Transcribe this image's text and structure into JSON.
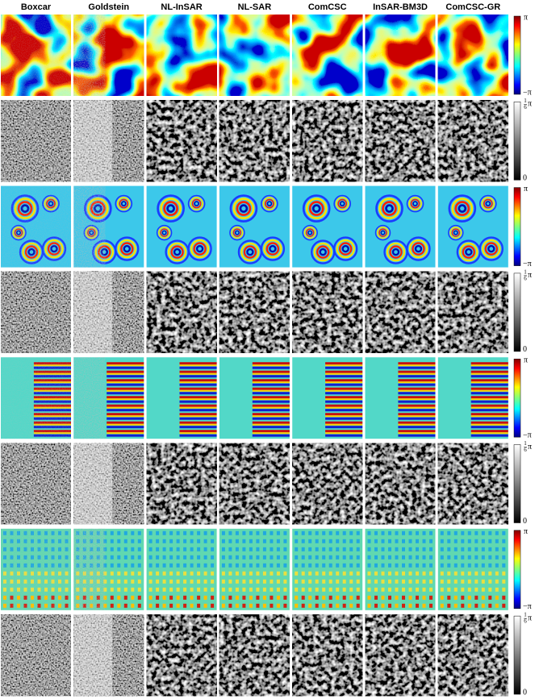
{
  "columns": [
    "Boxcar",
    "Goldstein",
    "NL-InSAR",
    "NL-SAR",
    "ComCSC",
    "InSAR-BM3D",
    "ComCSC-GR"
  ],
  "rows": [
    {
      "colorbar": {
        "top": "π",
        "bottom": "−π"
      }
    },
    {
      "colorbar": {
        "top": {
          "numerator": "1",
          "denominator": "6",
          "symbol": "π"
        },
        "bottom": "0"
      }
    },
    {
      "colorbar": {
        "top": "π",
        "bottom": "−π"
      }
    },
    {
      "colorbar": {
        "top": {
          "numerator": "1",
          "denominator": "6",
          "symbol": "π"
        },
        "bottom": "0"
      }
    },
    {
      "colorbar": {
        "top": "π",
        "bottom": "−π"
      }
    },
    {
      "colorbar": {
        "top": {
          "numerator": "1",
          "denominator": "6",
          "symbol": "π"
        },
        "bottom": "0"
      }
    },
    {
      "colorbar": {
        "top": "π",
        "bottom": "−π"
      }
    },
    {
      "colorbar": {
        "top": {
          "numerator": "1",
          "denominator": "6",
          "symbol": "π"
        },
        "bottom": "0"
      }
    }
  ]
}
